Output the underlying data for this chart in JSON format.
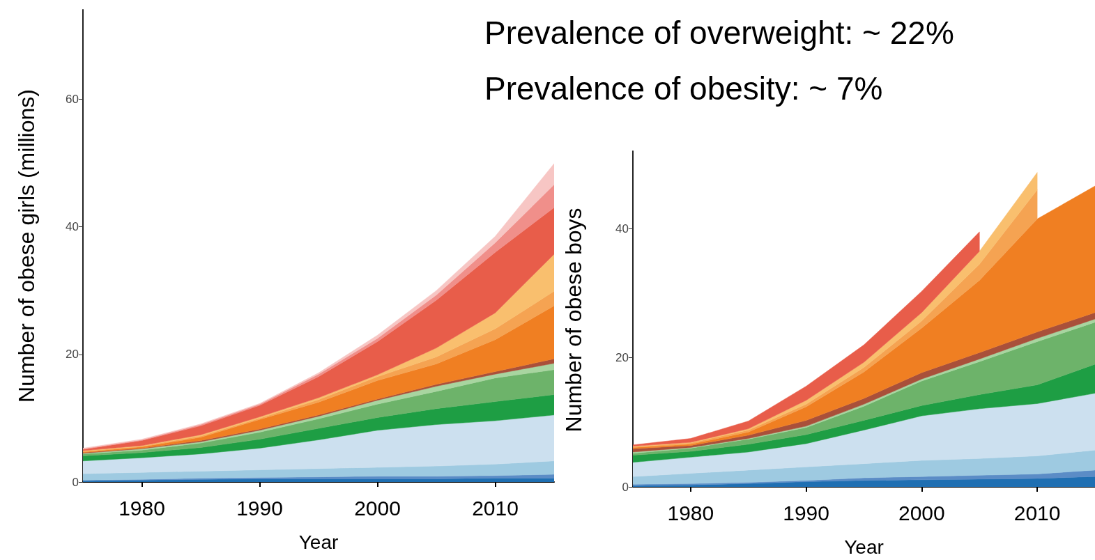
{
  "chart_data": [
    {
      "type": "area",
      "stacked": true,
      "xlabel": "Year",
      "ylabel": "Number of obese girls (millions)",
      "xlim": [
        1975,
        2015
      ],
      "xticks": [
        1980,
        1990,
        2000,
        2010
      ],
      "ylim": [
        0,
        74
      ],
      "yticks": [
        0,
        20,
        40,
        60
      ],
      "x": [
        1975,
        1980,
        1985,
        1990,
        1995,
        2000,
        2005,
        2010,
        2015
      ],
      "series": [
        {
          "color": "#1f6fb2",
          "values": [
            0.2,
            0.3,
            0.4,
            0.5,
            0.5,
            0.5,
            0.5,
            0.6,
            0.6
          ]
        },
        {
          "color": "#5b8cc6",
          "values": [
            0.1,
            0.1,
            0.2,
            0.2,
            0.3,
            0.4,
            0.4,
            0.4,
            0.6
          ]
        },
        {
          "color": "#9ecae1",
          "values": [
            1.0,
            1.1,
            1.1,
            1.2,
            1.3,
            1.4,
            1.6,
            1.8,
            2.1
          ]
        },
        {
          "color": "#cce0ef",
          "values": [
            2.0,
            2.3,
            2.7,
            3.4,
            4.5,
            5.8,
            6.5,
            6.8,
            7.2
          ]
        },
        {
          "color": "#1e9e44",
          "values": [
            0.8,
            0.8,
            1.0,
            1.4,
            1.8,
            2.0,
            2.5,
            3.0,
            3.2
          ]
        },
        {
          "color": "#6db36a",
          "values": [
            0.3,
            0.4,
            0.7,
            1.1,
            1.5,
            2.1,
            2.7,
            3.7,
            3.9
          ]
        },
        {
          "color": "#a8d5a0",
          "values": [
            0.1,
            0.2,
            0.2,
            0.3,
            0.4,
            0.6,
            0.8,
            0.6,
            1.0
          ]
        },
        {
          "color": "#a9503a",
          "values": [
            0.1,
            0.1,
            0.2,
            0.2,
            0.2,
            0.2,
            0.3,
            0.4,
            0.7
          ]
        },
        {
          "color": "#f07f22",
          "values": [
            0.1,
            0.2,
            0.5,
            1.5,
            2.0,
            2.9,
            3.2,
            5.0,
            8.3
          ]
        },
        {
          "color": "#f5a352",
          "values": [
            0.1,
            0.1,
            0.2,
            0.2,
            0.4,
            0.6,
            1.1,
            1.7,
            2.3
          ]
        },
        {
          "color": "#f9bf6e",
          "values": [
            0.1,
            0.1,
            0.2,
            0.2,
            0.3,
            0.3,
            1.4,
            2.5,
            5.8
          ]
        },
        {
          "color": "#e85d4a",
          "values": [
            0.2,
            0.8,
            1.4,
            1.8,
            3.3,
            5.2,
            7.5,
            9.5,
            7.3
          ]
        },
        {
          "color": "#f08f8a",
          "values": [
            0.1,
            0.1,
            0.2,
            0.2,
            0.4,
            0.5,
            0.8,
            1.5,
            3.6
          ]
        },
        {
          "color": "#f7c6c4",
          "values": [
            0.1,
            0.1,
            0.1,
            0.1,
            0.2,
            0.5,
            0.7,
            1.0,
            3.3
          ]
        }
      ]
    },
    {
      "type": "area",
      "stacked": true,
      "xlabel": "Year",
      "ylabel": "Number of obese boys",
      "annotations": [
        "Prevalence of overweight: ~ 22%",
        "Prevalence of obesity: ~ 7%"
      ],
      "xlim": [
        1975,
        2015
      ],
      "xticks": [
        1980,
        1990,
        2000,
        2010
      ],
      "ylim": [
        0,
        52
      ],
      "yticks": [
        0,
        20,
        40
      ],
      "x": [
        1975,
        1980,
        1985,
        1990,
        1995,
        2000,
        2005,
        2010,
        2015
      ],
      "series": [
        {
          "color": "#1f6fb2",
          "values": [
            0.2,
            0.3,
            0.5,
            0.8,
            1.0,
            1.1,
            1.2,
            1.3,
            1.6
          ]
        },
        {
          "color": "#5b8cc6",
          "values": [
            0.2,
            0.2,
            0.2,
            0.2,
            0.4,
            0.5,
            0.6,
            0.7,
            1.0
          ]
        },
        {
          "color": "#9ecae1",
          "values": [
            1.2,
            1.6,
            1.9,
            2.1,
            2.2,
            2.5,
            2.6,
            2.8,
            3.1
          ]
        },
        {
          "color": "#cce0ef",
          "values": [
            2.2,
            2.5,
            2.8,
            3.6,
            5.2,
            6.9,
            7.7,
            8.1,
            8.8
          ]
        },
        {
          "color": "#1e9e44",
          "values": [
            1.1,
            0.9,
            1.2,
            1.4,
            1.5,
            1.6,
            2.2,
            2.9,
            4.5
          ]
        },
        {
          "color": "#6db36a",
          "values": [
            0.3,
            0.5,
            0.8,
            1.1,
            2.2,
            3.8,
            5.1,
            6.7,
            6.5
          ]
        },
        {
          "color": "#a8d5a0",
          "values": [
            0.2,
            0.1,
            0.1,
            0.2,
            0.3,
            0.3,
            0.4,
            0.5,
            0.5
          ]
        },
        {
          "color": "#a9503a",
          "values": [
            0.5,
            0.3,
            0.5,
            0.9,
            0.9,
            1.0,
            1.0,
            1.0,
            1.0
          ]
        },
        {
          "color": "#f07f22",
          "values": [
            0.2,
            0.2,
            0.5,
            2.1,
            4.1,
            6.9,
            11.2,
            17.5,
            19.6
          ]
        },
        {
          "color": "#f5a352",
          "values": [
            0.1,
            0.2,
            0.3,
            0.4,
            0.7,
            1.1,
            2.5,
            4.5,
            null
          ]
        },
        {
          "color": "#f9bf6e",
          "values": [
            0.1,
            0.1,
            0.2,
            0.6,
            0.8,
            1.3,
            2.0,
            2.7,
            null
          ]
        },
        {
          "color": "#e85d4a",
          "values": [
            0.2,
            0.6,
            1.2,
            2.2,
            2.7,
            3.3,
            3.0,
            null,
            null
          ]
        }
      ]
    }
  ]
}
